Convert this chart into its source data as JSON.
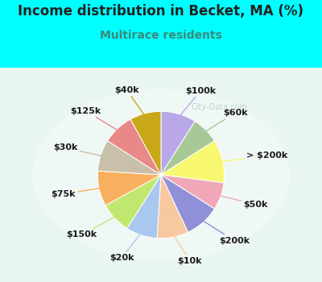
{
  "title": "Income distribution in Becket, MA (%)",
  "subtitle": "Multirace residents",
  "title_color": "#222222",
  "subtitle_color": "#3a8a7a",
  "background_color": "#00ffff",
  "watermark": "City-Data.com",
  "labels": [
    "$100k",
    "$60k",
    "> $200k",
    "$50k",
    "$200k",
    "$10k",
    "$20k",
    "$150k",
    "$75k",
    "$30k",
    "$125k",
    "$40k"
  ],
  "values": [
    9,
    7,
    11,
    7,
    9,
    8,
    8,
    8,
    9,
    8,
    8,
    8
  ],
  "colors": [
    "#b8a8e8",
    "#a8c898",
    "#f8f870",
    "#f0a8b8",
    "#9090d8",
    "#f8c8a0",
    "#a8c8f0",
    "#c0e870",
    "#f8b060",
    "#c8c0a8",
    "#e88888",
    "#c8a818"
  ],
  "label_fontsize": 8,
  "title_fontsize": 12,
  "subtitle_fontsize": 10
}
